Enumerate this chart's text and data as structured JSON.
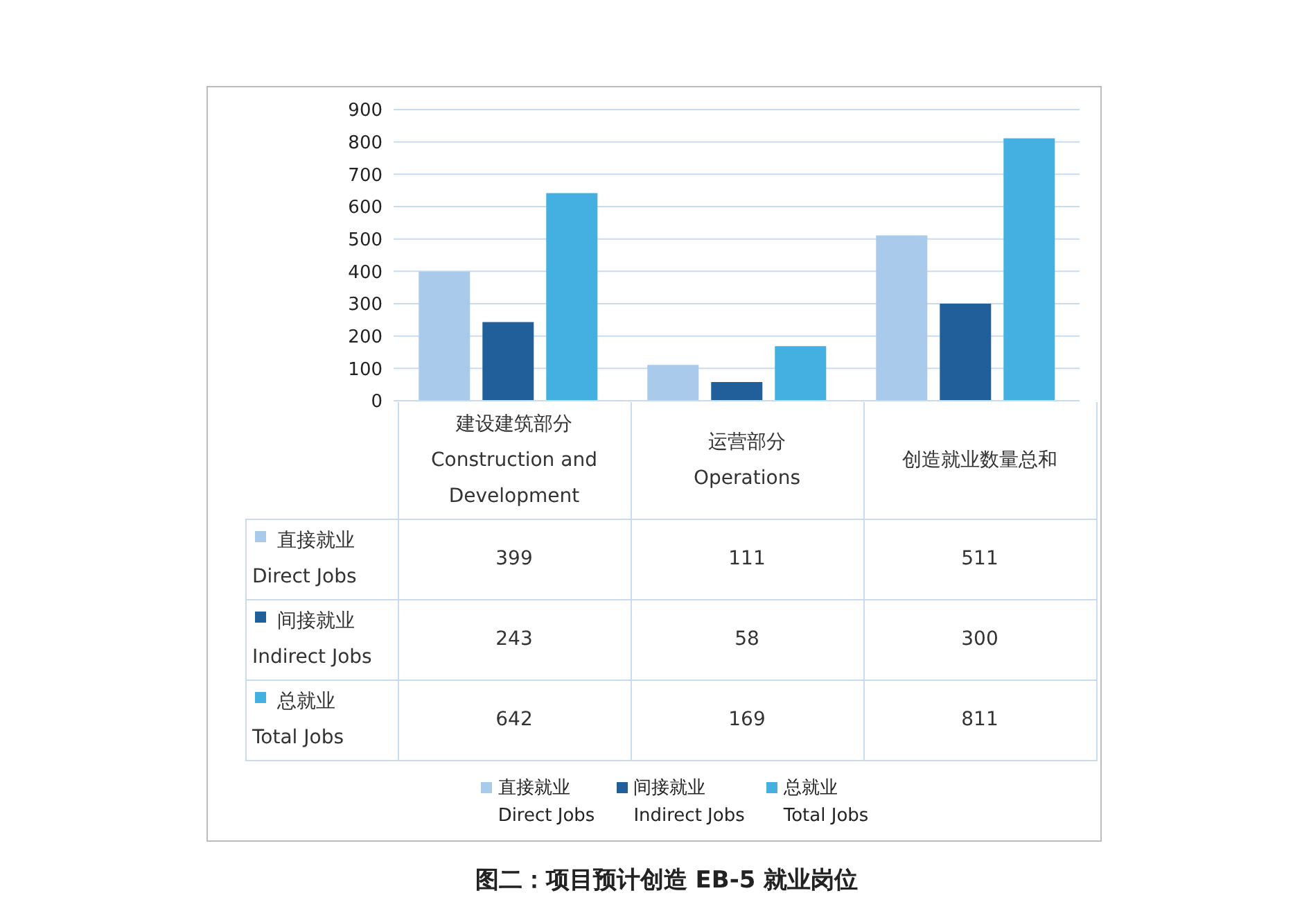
{
  "chart_data": {
    "type": "bar",
    "categories": [
      "建设建筑部分\nConstruction and\nDevelopment",
      "运营部分\nOperations",
      "创造就业数量总和"
    ],
    "series": [
      {
        "name": "直接就业\nDirect Jobs",
        "color": "#a9caeb",
        "values": [
          399,
          111,
          511
        ]
      },
      {
        "name": "间接就业\nIndirect Jobs",
        "color": "#215f9a",
        "values": [
          243,
          58,
          300
        ]
      },
      {
        "name": "总就业\nTotal Jobs",
        "color": "#44b0e1",
        "values": [
          642,
          169,
          811
        ]
      }
    ],
    "ylim": [
      0,
      900
    ],
    "yticks": [
      0,
      100,
      200,
      300,
      400,
      500,
      600,
      700,
      800,
      900
    ],
    "grid": "y",
    "legend": "bottom",
    "data_labels": true,
    "annotations": [
      "图二：项目预计创造 EB-5 就业岗位"
    ]
  }
}
